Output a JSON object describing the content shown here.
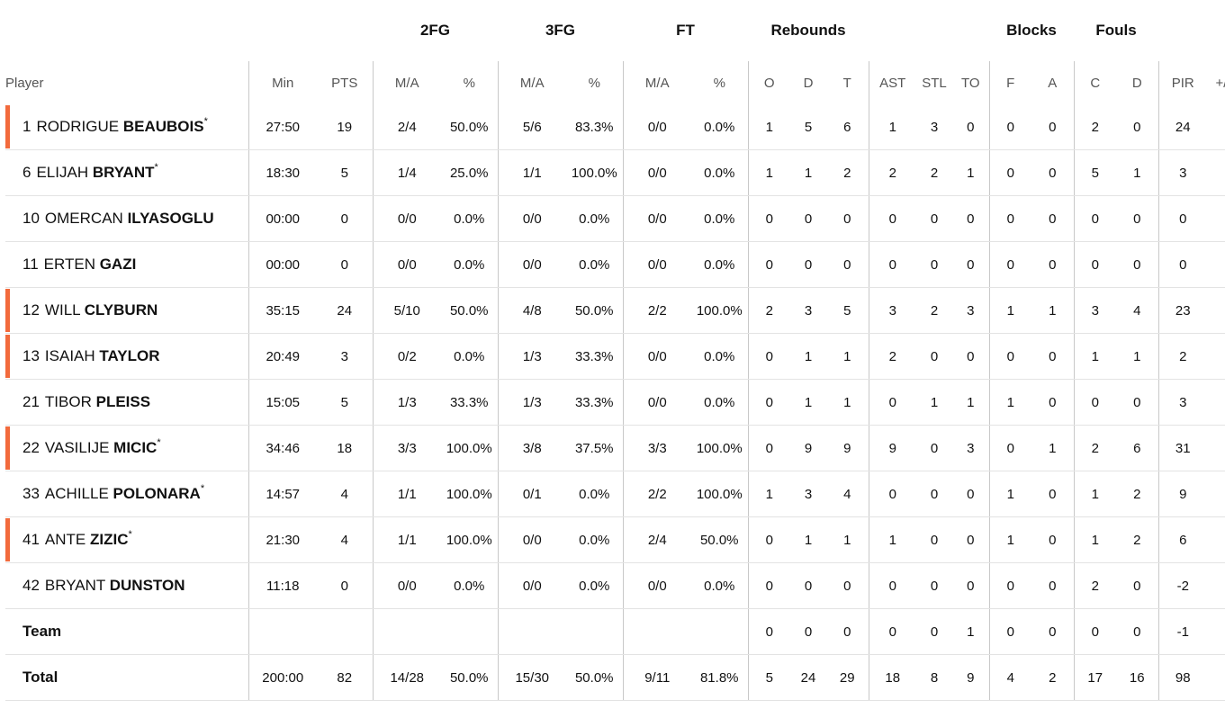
{
  "groups": {
    "fg2": "2FG",
    "fg3": "3FG",
    "ft": "FT",
    "reb": "Rebounds",
    "blk": "Blocks",
    "fouls": "Fouls"
  },
  "headers": {
    "player": "Player",
    "min": "Min",
    "pts": "PTS",
    "fg2_ma": "M/A",
    "fg2_pct": "%",
    "fg3_ma": "M/A",
    "fg3_pct": "%",
    "ft_ma": "M/A",
    "ft_pct": "%",
    "reb_o": "O",
    "reb_d": "D",
    "reb_t": "T",
    "ast": "AST",
    "stl": "STL",
    "to": "TO",
    "blk_f": "F",
    "blk_a": "A",
    "foul_c": "C",
    "foul_d": "D",
    "pir": "PIR",
    "pm": "+/-"
  },
  "accent": "#f26a3c",
  "players": [
    {
      "num": "1",
      "first": "RODRIGUE",
      "last": "BEAUBOIS",
      "star": "*",
      "starter": true,
      "stats": [
        "27:50",
        "19",
        "2/4",
        "50.0%",
        "5/6",
        "83.3%",
        "0/0",
        "0.0%",
        "1",
        "5",
        "6",
        "1",
        "3",
        "0",
        "0",
        "0",
        "2",
        "0",
        "24",
        ""
      ]
    },
    {
      "num": "6",
      "first": "ELIJAH",
      "last": "BRYANT",
      "star": "*",
      "starter": false,
      "stats": [
        "18:30",
        "5",
        "1/4",
        "25.0%",
        "1/1",
        "100.0%",
        "0/0",
        "0.0%",
        "1",
        "1",
        "2",
        "2",
        "2",
        "1",
        "0",
        "0",
        "5",
        "1",
        "3",
        ""
      ]
    },
    {
      "num": "10",
      "first": "OMERCAN",
      "last": "ILYASOGLU",
      "star": "",
      "starter": false,
      "stats": [
        "00:00",
        "0",
        "0/0",
        "0.0%",
        "0/0",
        "0.0%",
        "0/0",
        "0.0%",
        "0",
        "0",
        "0",
        "0",
        "0",
        "0",
        "0",
        "0",
        "0",
        "0",
        "0",
        ""
      ]
    },
    {
      "num": "11",
      "first": "ERTEN",
      "last": "GAZI",
      "star": "",
      "starter": false,
      "stats": [
        "00:00",
        "0",
        "0/0",
        "0.0%",
        "0/0",
        "0.0%",
        "0/0",
        "0.0%",
        "0",
        "0",
        "0",
        "0",
        "0",
        "0",
        "0",
        "0",
        "0",
        "0",
        "0",
        ""
      ]
    },
    {
      "num": "12",
      "first": "WILL",
      "last": "CLYBURN",
      "star": "",
      "starter": true,
      "stats": [
        "35:15",
        "24",
        "5/10",
        "50.0%",
        "4/8",
        "50.0%",
        "2/2",
        "100.0%",
        "2",
        "3",
        "5",
        "3",
        "2",
        "3",
        "1",
        "1",
        "3",
        "4",
        "23",
        ""
      ]
    },
    {
      "num": "13",
      "first": "ISAIAH",
      "last": "TAYLOR",
      "star": "",
      "starter": true,
      "stats": [
        "20:49",
        "3",
        "0/2",
        "0.0%",
        "1/3",
        "33.3%",
        "0/0",
        "0.0%",
        "0",
        "1",
        "1",
        "2",
        "0",
        "0",
        "0",
        "0",
        "1",
        "1",
        "2",
        ""
      ]
    },
    {
      "num": "21",
      "first": "TIBOR",
      "last": "PLEISS",
      "star": "",
      "starter": false,
      "stats": [
        "15:05",
        "5",
        "1/3",
        "33.3%",
        "1/3",
        "33.3%",
        "0/0",
        "0.0%",
        "0",
        "1",
        "1",
        "0",
        "1",
        "1",
        "1",
        "0",
        "0",
        "0",
        "3",
        ""
      ]
    },
    {
      "num": "22",
      "first": "VASILIJE",
      "last": "MICIC",
      "star": "*",
      "starter": true,
      "stats": [
        "34:46",
        "18",
        "3/3",
        "100.0%",
        "3/8",
        "37.5%",
        "3/3",
        "100.0%",
        "0",
        "9",
        "9",
        "9",
        "0",
        "3",
        "0",
        "1",
        "2",
        "6",
        "31",
        ""
      ]
    },
    {
      "num": "33",
      "first": "ACHILLE",
      "last": "POLONARA",
      "star": "*",
      "starter": false,
      "stats": [
        "14:57",
        "4",
        "1/1",
        "100.0%",
        "0/1",
        "0.0%",
        "2/2",
        "100.0%",
        "1",
        "3",
        "4",
        "0",
        "0",
        "0",
        "1",
        "0",
        "1",
        "2",
        "9",
        ""
      ]
    },
    {
      "num": "41",
      "first": "ANTE",
      "last": "ZIZIC",
      "star": "*",
      "starter": true,
      "stats": [
        "21:30",
        "4",
        "1/1",
        "100.0%",
        "0/0",
        "0.0%",
        "2/4",
        "50.0%",
        "0",
        "1",
        "1",
        "1",
        "0",
        "0",
        "1",
        "0",
        "1",
        "2",
        "6",
        ""
      ]
    },
    {
      "num": "42",
      "first": "BRYANT",
      "last": "DUNSTON",
      "star": "",
      "starter": false,
      "stats": [
        "11:18",
        "0",
        "0/0",
        "0.0%",
        "0/0",
        "0.0%",
        "0/0",
        "0.0%",
        "0",
        "0",
        "0",
        "0",
        "0",
        "0",
        "0",
        "0",
        "2",
        "0",
        "-2",
        ""
      ]
    }
  ],
  "team": {
    "label": "Team",
    "stats": [
      "",
      "",
      "",
      "",
      "",
      "",
      "",
      "",
      "0",
      "0",
      "0",
      "0",
      "0",
      "1",
      "0",
      "0",
      "0",
      "0",
      "-1",
      ""
    ]
  },
  "total": {
    "label": "Total",
    "stats": [
      "200:00",
      "82",
      "14/28",
      "50.0%",
      "15/30",
      "50.0%",
      "9/11",
      "81.8%",
      "5",
      "24",
      "29",
      "18",
      "8",
      "9",
      "4",
      "2",
      "17",
      "16",
      "98",
      ""
    ]
  }
}
